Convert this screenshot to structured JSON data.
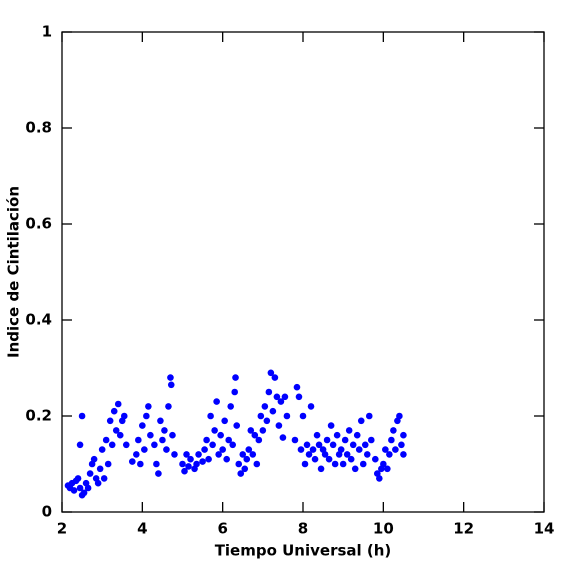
{
  "chart_data": {
    "type": "scatter",
    "xlabel": "Tiempo Universal (h)",
    "ylabel": "Indice de Cintilación",
    "color": "#0000ff",
    "xlim": [
      2,
      14
    ],
    "xticks": [
      2,
      4,
      6,
      8,
      10,
      12,
      14
    ],
    "ylim": [
      0,
      1
    ],
    "yticks": [
      0,
      0.2,
      0.4,
      0.6,
      0.8,
      1
    ],
    "x": [
      2.15,
      2.2,
      2.25,
      2.3,
      2.35,
      2.4,
      2.45,
      2.45,
      2.5,
      2.5,
      2.55,
      2.6,
      2.65,
      2.7,
      2.75,
      2.8,
      2.85,
      2.9,
      2.95,
      3.0,
      3.05,
      3.1,
      3.15,
      3.2,
      3.25,
      3.3,
      3.35,
      3.4,
      3.45,
      3.5,
      3.55,
      3.6,
      3.75,
      3.85,
      3.9,
      3.95,
      4.0,
      4.05,
      4.1,
      4.15,
      4.2,
      4.3,
      4.35,
      4.4,
      4.45,
      4.5,
      4.55,
      4.6,
      4.65,
      4.7,
      4.72,
      4.75,
      4.8,
      5.0,
      5.05,
      5.1,
      5.15,
      5.2,
      5.3,
      5.35,
      5.4,
      5.5,
      5.55,
      5.6,
      5.65,
      5.7,
      5.75,
      5.8,
      5.85,
      5.9,
      5.95,
      6.0,
      6.05,
      6.1,
      6.15,
      6.2,
      6.25,
      6.3,
      6.32,
      6.35,
      6.4,
      6.45,
      6.5,
      6.55,
      6.6,
      6.65,
      6.7,
      6.75,
      6.8,
      6.85,
      6.9,
      6.95,
      7.0,
      7.05,
      7.1,
      7.15,
      7.2,
      7.25,
      7.3,
      7.35,
      7.4,
      7.45,
      7.5,
      7.55,
      7.6,
      7.8,
      7.85,
      7.9,
      7.95,
      8.0,
      8.05,
      8.1,
      8.15,
      8.2,
      8.25,
      8.3,
      8.35,
      8.4,
      8.45,
      8.5,
      8.55,
      8.6,
      8.65,
      8.7,
      8.75,
      8.8,
      8.85,
      8.9,
      8.95,
      9.0,
      9.05,
      9.1,
      9.15,
      9.2,
      9.25,
      9.3,
      9.35,
      9.4,
      9.45,
      9.5,
      9.55,
      9.6,
      9.65,
      9.7,
      9.8,
      9.85,
      9.9,
      9.95,
      10.0,
      10.05,
      10.1,
      10.15,
      10.2,
      10.25,
      10.3,
      10.35,
      10.4,
      10.45,
      10.5,
      10.5
    ],
    "values": [
      0.055,
      0.05,
      0.06,
      0.045,
      0.065,
      0.07,
      0.14,
      0.05,
      0.035,
      0.2,
      0.04,
      0.06,
      0.05,
      0.08,
      0.1,
      0.11,
      0.07,
      0.06,
      0.09,
      0.13,
      0.07,
      0.15,
      0.1,
      0.19,
      0.14,
      0.21,
      0.17,
      0.225,
      0.16,
      0.19,
      0.2,
      0.14,
      0.105,
      0.12,
      0.15,
      0.1,
      0.18,
      0.13,
      0.2,
      0.22,
      0.16,
      0.14,
      0.1,
      0.08,
      0.19,
      0.15,
      0.17,
      0.13,
      0.22,
      0.28,
      0.265,
      0.16,
      0.12,
      0.1,
      0.085,
      0.12,
      0.095,
      0.11,
      0.09,
      0.1,
      0.12,
      0.105,
      0.13,
      0.15,
      0.11,
      0.2,
      0.14,
      0.17,
      0.23,
      0.12,
      0.16,
      0.13,
      0.19,
      0.11,
      0.15,
      0.22,
      0.14,
      0.25,
      0.28,
      0.18,
      0.1,
      0.08,
      0.12,
      0.09,
      0.11,
      0.13,
      0.17,
      0.12,
      0.16,
      0.1,
      0.15,
      0.2,
      0.17,
      0.22,
      0.19,
      0.25,
      0.29,
      0.21,
      0.28,
      0.24,
      0.18,
      0.23,
      0.155,
      0.24,
      0.2,
      0.15,
      0.26,
      0.24,
      0.13,
      0.2,
      0.1,
      0.14,
      0.12,
      0.22,
      0.13,
      0.11,
      0.16,
      0.14,
      0.09,
      0.13,
      0.12,
      0.15,
      0.11,
      0.18,
      0.14,
      0.1,
      0.16,
      0.12,
      0.13,
      0.1,
      0.15,
      0.12,
      0.17,
      0.11,
      0.14,
      0.09,
      0.16,
      0.13,
      0.19,
      0.1,
      0.14,
      0.12,
      0.2,
      0.15,
      0.11,
      0.08,
      0.07,
      0.09,
      0.1,
      0.13,
      0.09,
      0.12,
      0.15,
      0.17,
      0.13,
      0.19,
      0.2,
      0.14,
      0.16,
      0.12
    ]
  }
}
